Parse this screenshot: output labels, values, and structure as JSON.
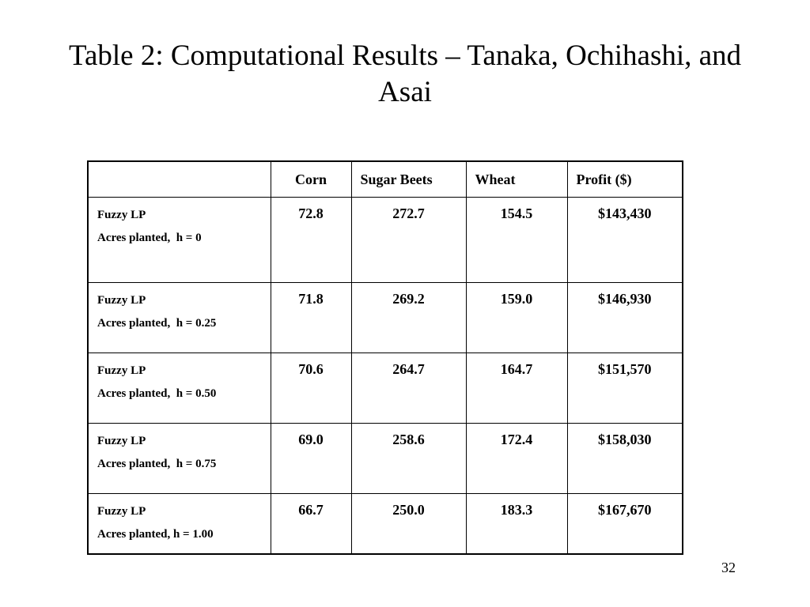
{
  "title": "Table 2: Computational Results – Tanaka, Ochihashi, and Asai",
  "table": {
    "header": [
      "Corn",
      "Sugar Beets",
      "Wheat",
      "Profit ($)"
    ],
    "rows": [
      {
        "label": [
          "Fuzzy LP",
          "Acres planted,  h = 0"
        ],
        "cells": [
          "72.8",
          "272.7",
          "154.5",
          "$143,430"
        ]
      },
      {
        "label": [
          "Fuzzy LP",
          "Acres planted,  h = 0.25"
        ],
        "cells": [
          "71.8",
          "269.2",
          "159.0",
          "$146,930"
        ]
      },
      {
        "label": [
          "Fuzzy LP",
          "Acres planted,  h = 0.50"
        ],
        "cells": [
          "70.6",
          "264.7",
          "164.7",
          "$151,570"
        ]
      },
      {
        "label": [
          "Fuzzy LP",
          "Acres planted,  h = 0.75"
        ],
        "cells": [
          "69.0",
          "258.6",
          "172.4",
          "$158,030"
        ]
      },
      {
        "label": [
          "Fuzzy LP",
          "Acres planted, h = 1.00"
        ],
        "cells": [
          "66.7",
          "250.0",
          "183.3",
          "$167,670"
        ]
      }
    ]
  },
  "page_number": "32"
}
